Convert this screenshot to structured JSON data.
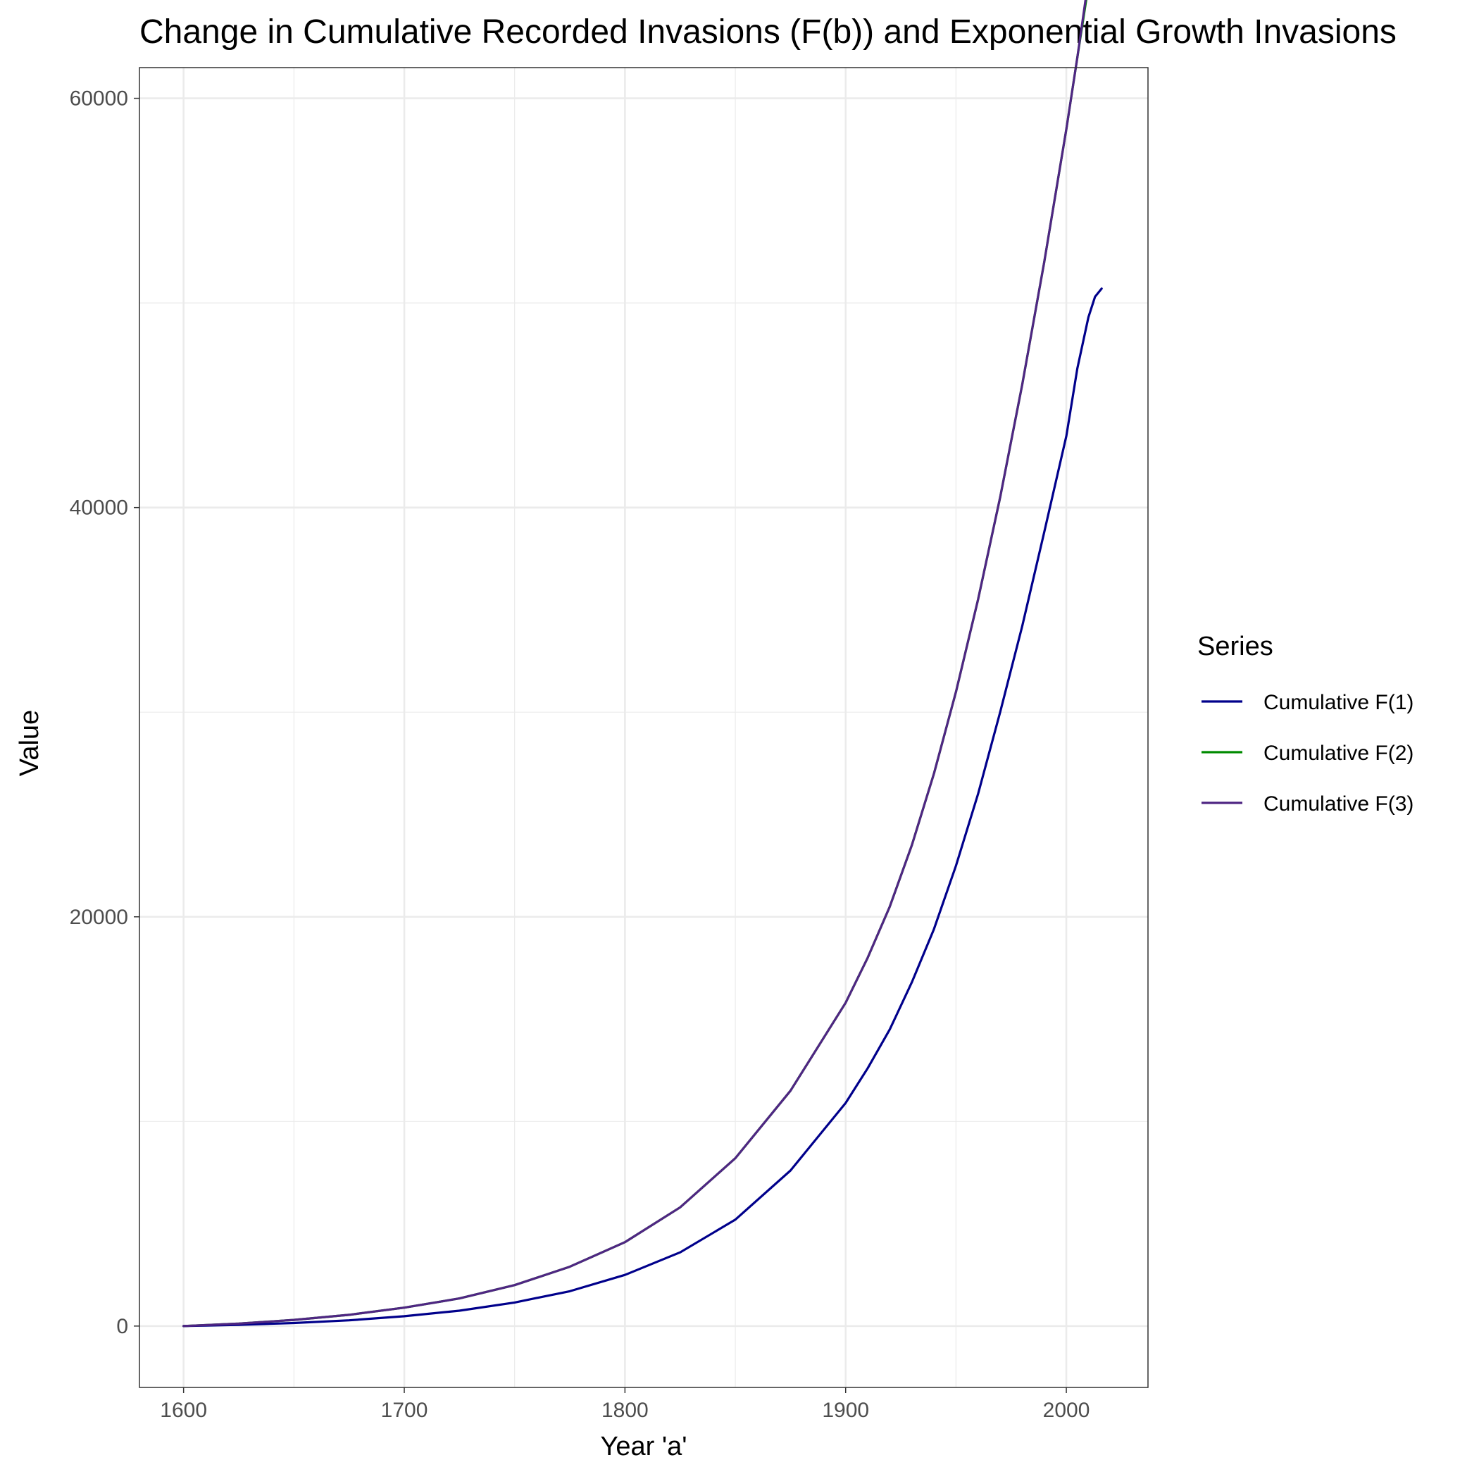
{
  "chart_data": {
    "type": "line",
    "title": "Change in Cumulative Recorded Invasions (F(b)) and Exponential Growth Invasions",
    "xlabel": "Year 'a'",
    "ylabel": "Value",
    "xlim": [
      1580,
      2037
    ],
    "ylim": [
      -3000,
      61500
    ],
    "x_ticks": [
      1600,
      1700,
      1800,
      1900,
      2000
    ],
    "y_ticks": [
      0,
      20000,
      40000,
      60000
    ],
    "x_minor_ticks": [
      1650,
      1750,
      1850,
      1950
    ],
    "y_minor_ticks": [
      10000,
      30000,
      50000
    ],
    "grid": true,
    "legend": {
      "title": "Series",
      "position": "right"
    },
    "series": [
      {
        "name": "Cumulative F(1)",
        "color": "#00008B",
        "points": [
          [
            1600,
            0
          ],
          [
            1625,
            60
          ],
          [
            1650,
            150
          ],
          [
            1675,
            280
          ],
          [
            1700,
            480
          ],
          [
            1725,
            750
          ],
          [
            1750,
            1150
          ],
          [
            1775,
            1700
          ],
          [
            1800,
            2500
          ],
          [
            1825,
            3600
          ],
          [
            1850,
            5200
          ],
          [
            1875,
            7600
          ],
          [
            1900,
            10900
          ],
          [
            1910,
            12600
          ],
          [
            1920,
            14500
          ],
          [
            1930,
            16800
          ],
          [
            1940,
            19400
          ],
          [
            1950,
            22500
          ],
          [
            1960,
            26000
          ],
          [
            1970,
            30000
          ],
          [
            1980,
            34200
          ],
          [
            1990,
            38800
          ],
          [
            2000,
            43500
          ],
          [
            2005,
            46800
          ],
          [
            2010,
            49300
          ],
          [
            2013,
            50300
          ],
          [
            2016,
            50700
          ]
        ]
      },
      {
        "name": "Cumulative F(2)",
        "color": "#008B00",
        "points": [
          [
            1600,
            0
          ],
          [
            1625,
            120
          ],
          [
            1650,
            300
          ],
          [
            1675,
            550
          ],
          [
            1700,
            900
          ],
          [
            1725,
            1350
          ],
          [
            1750,
            2000
          ],
          [
            1775,
            2900
          ],
          [
            1800,
            4100
          ],
          [
            1825,
            5800
          ],
          [
            1850,
            8200
          ],
          [
            1875,
            11500
          ],
          [
            1900,
            15800
          ],
          [
            1910,
            18000
          ],
          [
            1920,
            20500
          ],
          [
            1930,
            23500
          ],
          [
            1940,
            27000
          ],
          [
            1950,
            31000
          ],
          [
            1960,
            35500
          ],
          [
            1970,
            40500
          ],
          [
            1980,
            46000
          ],
          [
            1990,
            52000
          ],
          [
            2000,
            58500
          ],
          [
            2005,
            62000
          ],
          [
            2010,
            65500
          ],
          [
            2016,
            68500
          ]
        ]
      },
      {
        "name": "Cumulative F(3)",
        "color": "#4F2683",
        "points": [
          [
            1600,
            0
          ],
          [
            1625,
            120
          ],
          [
            1650,
            300
          ],
          [
            1675,
            550
          ],
          [
            1700,
            900
          ],
          [
            1725,
            1350
          ],
          [
            1750,
            2000
          ],
          [
            1775,
            2900
          ],
          [
            1800,
            4100
          ],
          [
            1825,
            5800
          ],
          [
            1850,
            8200
          ],
          [
            1875,
            11500
          ],
          [
            1900,
            15800
          ],
          [
            1910,
            18000
          ],
          [
            1920,
            20500
          ],
          [
            1930,
            23500
          ],
          [
            1940,
            27000
          ],
          [
            1950,
            31000
          ],
          [
            1960,
            35500
          ],
          [
            1970,
            40500
          ],
          [
            1980,
            46000
          ],
          [
            1990,
            52000
          ],
          [
            2000,
            58500
          ],
          [
            2005,
            62000
          ],
          [
            2010,
            65800
          ],
          [
            2016,
            69500
          ]
        ]
      }
    ]
  }
}
